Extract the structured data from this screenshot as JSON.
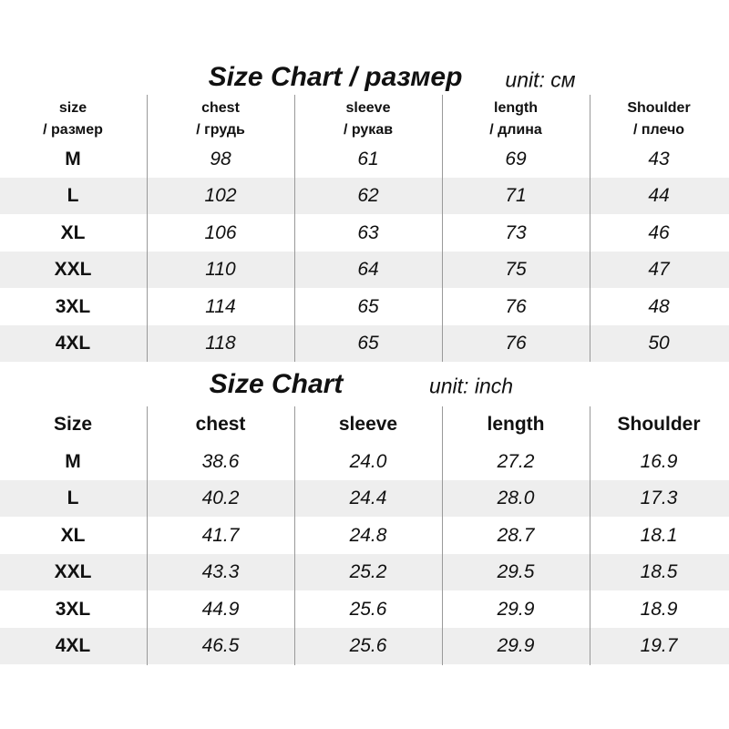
{
  "tables": [
    {
      "title": "Size Chart / размер",
      "unit": "unit: см",
      "header": [
        [
          "size",
          "/ размер"
        ],
        [
          "chest",
          "/ грудь"
        ],
        [
          "sleeve",
          "/ рукав"
        ],
        [
          "length",
          "/ длина"
        ],
        [
          "Shoulder",
          "/ плечо"
        ]
      ],
      "rows": [
        [
          "M",
          "98",
          "61",
          "69",
          "43"
        ],
        [
          "L",
          "102",
          "62",
          "71",
          "44"
        ],
        [
          "XL",
          "106",
          "63",
          "73",
          "46"
        ],
        [
          "XXL",
          "110",
          "64",
          "75",
          "47"
        ],
        [
          "3XL",
          "114",
          "65",
          "76",
          "48"
        ],
        [
          "4XL",
          "118",
          "65",
          "76",
          "50"
        ]
      ]
    },
    {
      "title": "Size Chart",
      "unit": "unit: inch",
      "header": [
        [
          "Size"
        ],
        [
          "chest"
        ],
        [
          "sleeve"
        ],
        [
          "length"
        ],
        [
          "Shoulder"
        ]
      ],
      "rows": [
        [
          "M",
          "38.6",
          "24.0",
          "27.2",
          "16.9"
        ],
        [
          "L",
          "40.2",
          "24.4",
          "28.0",
          "17.3"
        ],
        [
          "XL",
          "41.7",
          "24.8",
          "28.7",
          "18.1"
        ],
        [
          "XXL",
          "43.3",
          "25.2",
          "29.5",
          "18.5"
        ],
        [
          "3XL",
          "44.9",
          "25.6",
          "29.9",
          "18.9"
        ],
        [
          "4XL",
          "46.5",
          "25.6",
          "29.9",
          "19.7"
        ]
      ]
    }
  ]
}
